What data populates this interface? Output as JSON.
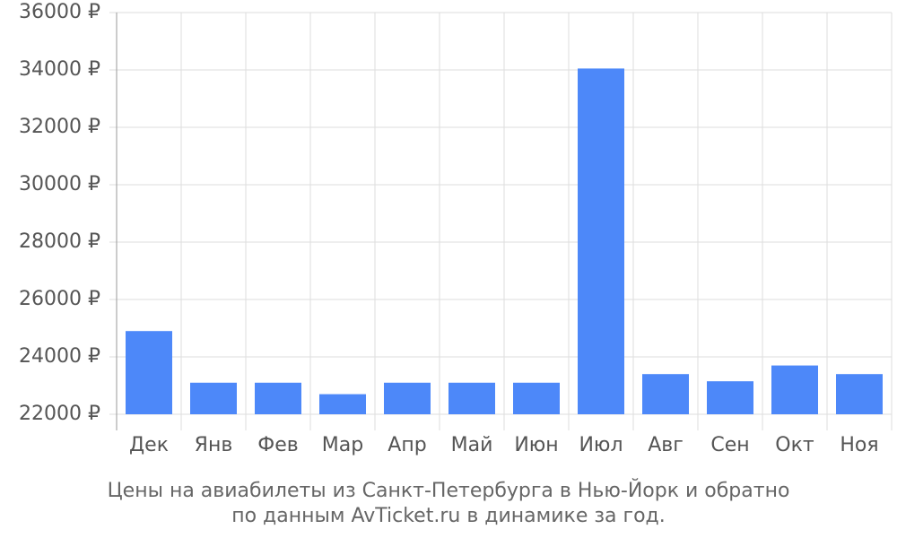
{
  "chart_data": {
    "type": "bar",
    "caption": [
      "Цены на авиабилеты из Санкт-Петербурга в Нью-Йорк и обратно",
      "по данным AvTicket.ru в динамике за год."
    ],
    "categories": [
      "Дек",
      "Янв",
      "Фев",
      "Мар",
      "Апр",
      "Май",
      "Июн",
      "Июл",
      "Авг",
      "Сен",
      "Окт",
      "Ноя"
    ],
    "values": [
      24900,
      23100,
      23100,
      22700,
      23100,
      23100,
      23100,
      34050,
      23400,
      23150,
      23700,
      23400
    ],
    "color": "#4d88f9",
    "ylim": [
      22000,
      36000
    ],
    "yticks": [
      {
        "value": 22000,
        "label": "22000 ₽"
      },
      {
        "value": 24000,
        "label": "24000 ₽"
      },
      {
        "value": 26000,
        "label": "26000 ₽"
      },
      {
        "value": 28000,
        "label": "28000 ₽"
      },
      {
        "value": 30000,
        "label": "30000 ₽"
      },
      {
        "value": 32000,
        "label": "32000 ₽"
      },
      {
        "value": 34000,
        "label": "34000 ₽"
      },
      {
        "value": 36000,
        "label": "36000 ₽"
      }
    ],
    "grid": true
  }
}
